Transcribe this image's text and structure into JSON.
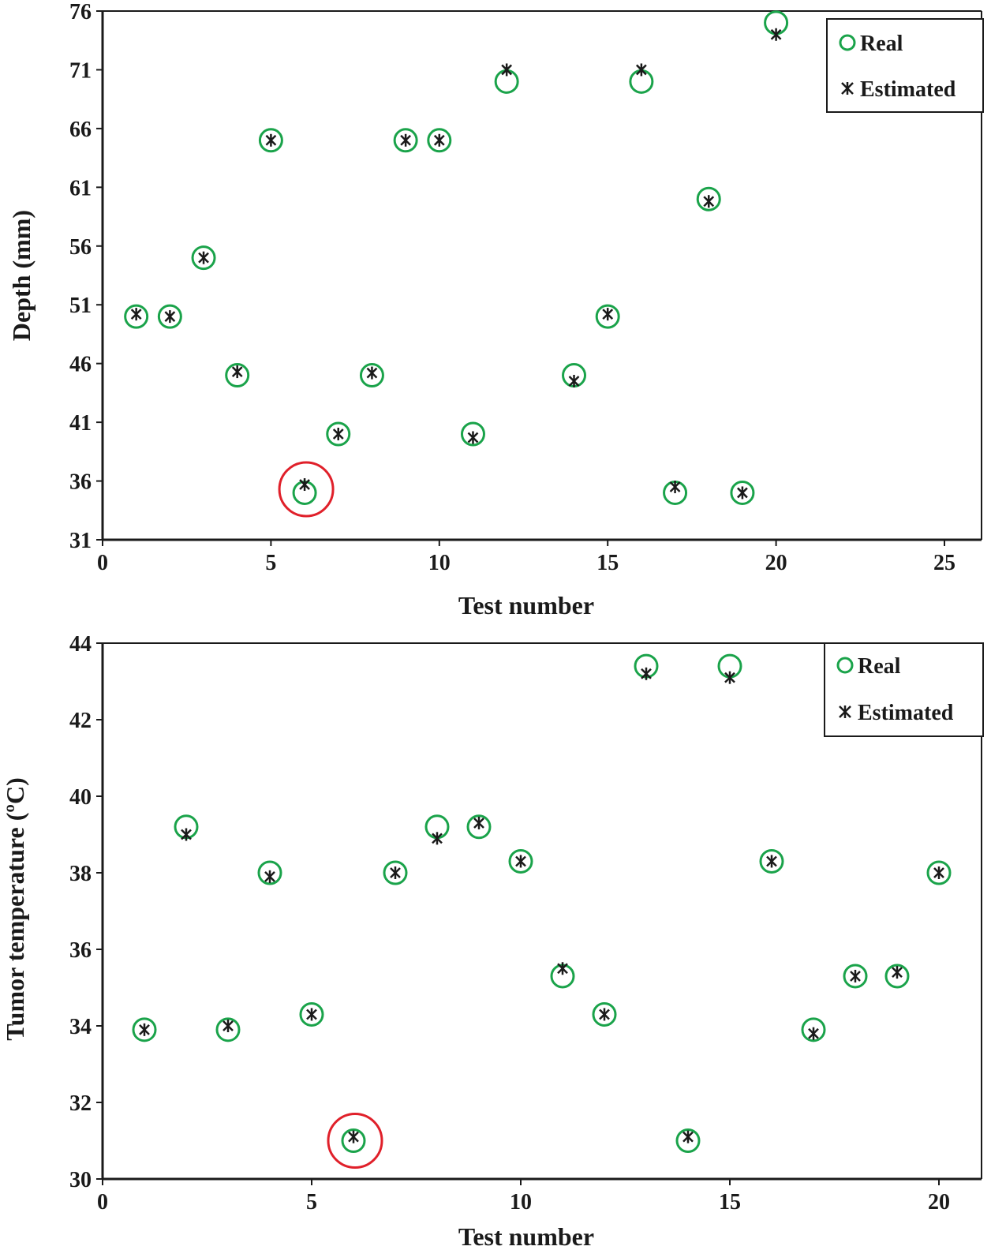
{
  "chart_data": [
    {
      "type": "scatter",
      "title": "",
      "xlabel": "Test number",
      "ylabel": "Depth (mm)",
      "xlim": [
        0,
        25
      ],
      "ylim": [
        31,
        76
      ],
      "xticks": [
        0,
        5,
        10,
        15,
        20,
        25
      ],
      "yticks": [
        31,
        36,
        41,
        46,
        51,
        56,
        61,
        66,
        71,
        76
      ],
      "grid": false,
      "legend_position": "top-right",
      "series": [
        {
          "name": "Real",
          "marker": "open-circle",
          "color": "#1aa34a",
          "x": [
            1,
            2,
            3,
            4,
            5,
            6,
            7,
            8,
            9,
            10,
            11,
            12,
            14,
            15,
            16,
            17,
            18,
            19,
            20
          ],
          "y": [
            50,
            50,
            55,
            45,
            65,
            35,
            40,
            45,
            65,
            65,
            40,
            70,
            45,
            50,
            70,
            35,
            60,
            35,
            75
          ]
        },
        {
          "name": "Estimated",
          "marker": "star",
          "color": "#1a1a1a",
          "x": [
            1,
            2,
            3,
            4,
            5,
            6,
            7,
            8,
            9,
            10,
            11,
            12,
            14,
            15,
            16,
            17,
            18,
            19,
            20
          ],
          "y": [
            50.2,
            50,
            55,
            45.3,
            65,
            35.7,
            40,
            45.2,
            65,
            65,
            39.7,
            71,
            44.5,
            50.2,
            71,
            35.5,
            59.8,
            35,
            74
          ]
        }
      ],
      "annotations": [
        {
          "shape": "circle",
          "color": "#e0202a",
          "x": 6,
          "y": 35.3
        }
      ]
    },
    {
      "type": "scatter",
      "title": "",
      "xlabel": "Test number",
      "ylabel": "Tumor temperature (ºC)",
      "xlim": [
        0,
        22
      ],
      "ylim": [
        30,
        44
      ],
      "xticks": [
        0,
        5,
        10,
        15,
        20
      ],
      "yticks": [
        30,
        32,
        34,
        36,
        38,
        40,
        42,
        44
      ],
      "grid": false,
      "legend_position": "top-right",
      "series": [
        {
          "name": "Real",
          "marker": "open-circle",
          "color": "#1aa34a",
          "x": [
            1,
            2,
            3,
            4,
            5,
            6,
            7,
            8,
            9,
            10,
            11,
            12,
            13,
            14,
            15,
            16,
            17,
            18,
            19,
            20
          ],
          "y": [
            33.9,
            39.2,
            33.9,
            38,
            34.3,
            31,
            38,
            39.2,
            39.2,
            38.3,
            35.3,
            34.3,
            43.4,
            31,
            43.4,
            38.3,
            33.9,
            35.3,
            35.3,
            38
          ]
        },
        {
          "name": "Estimated",
          "marker": "star",
          "color": "#1a1a1a",
          "x": [
            1,
            2,
            3,
            4,
            5,
            6,
            7,
            8,
            9,
            10,
            11,
            12,
            13,
            14,
            15,
            16,
            17,
            18,
            19,
            20
          ],
          "y": [
            33.9,
            39,
            34,
            37.9,
            34.3,
            31.1,
            38,
            38.9,
            39.3,
            38.3,
            35.5,
            34.3,
            43.2,
            31.1,
            43.1,
            38.3,
            33.8,
            35.3,
            35.4,
            38
          ]
        }
      ],
      "annotations": [
        {
          "shape": "circle",
          "color": "#e0202a",
          "x": 6,
          "y": 31
        }
      ]
    }
  ]
}
